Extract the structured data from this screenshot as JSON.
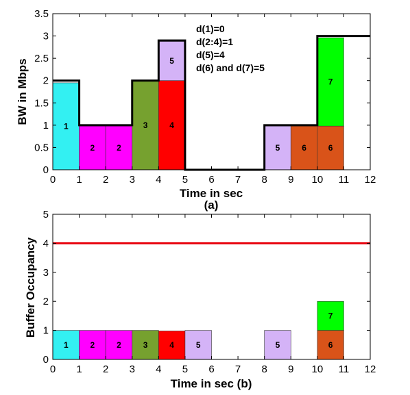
{
  "chart_data": [
    {
      "type": "bar",
      "subplot_label": "(a)",
      "xlabel": "Time in sec",
      "ylabel": "BW in Mbps",
      "xlim": [
        0,
        12
      ],
      "ylim": [
        0,
        3.5
      ],
      "xticks": [
        "0",
        "1",
        "2",
        "3",
        "4",
        "5",
        "6",
        "7",
        "8",
        "9",
        "10",
        "11",
        "12"
      ],
      "yticks": [
        "0",
        "0.5",
        "1",
        "1.5",
        "2",
        "2.5",
        "3",
        "3.5"
      ],
      "annotations": [
        "d(1)=0",
        "d(2:4)=1",
        "d(5)=4",
        "d(6) and d(7)=5"
      ],
      "bandwidth_step": [
        {
          "x0": 0,
          "x1": 1,
          "y": 2
        },
        {
          "x0": 1,
          "x1": 3,
          "y": 1
        },
        {
          "x0": 3,
          "x1": 4,
          "y": 2
        },
        {
          "x0": 4,
          "x1": 5,
          "y": 2.9
        },
        {
          "x0": 5,
          "x1": 8,
          "y": 0
        },
        {
          "x0": 8,
          "x1": 10,
          "y": 1
        },
        {
          "x0": 10,
          "x1": 12,
          "y": 3
        }
      ],
      "segments": [
        {
          "label": "1",
          "x0": 0,
          "x1": 1,
          "y0": 0,
          "y1": 1.95,
          "color": "#33f0f2"
        },
        {
          "label": "2",
          "x0": 1,
          "x1": 2,
          "y0": 0,
          "y1": 0.98,
          "color": "#ff00ff"
        },
        {
          "label": "2",
          "x0": 2,
          "x1": 3,
          "y0": 0,
          "y1": 0.98,
          "color": "#ff00ff"
        },
        {
          "label": "3",
          "x0": 3,
          "x1": 4,
          "y0": 0,
          "y1": 2.0,
          "color": "#76a12f"
        },
        {
          "label": "4",
          "x0": 4,
          "x1": 5,
          "y0": 0,
          "y1": 2.0,
          "color": "#ff0000"
        },
        {
          "label": "5",
          "x0": 4,
          "x1": 5,
          "y0": 2.0,
          "y1": 2.88,
          "color": "#d4b3f7"
        },
        {
          "label": "5",
          "x0": 8,
          "x1": 9,
          "y0": 0,
          "y1": 0.98,
          "color": "#d4b3f7"
        },
        {
          "label": "6",
          "x0": 9,
          "x1": 10,
          "y0": 0,
          "y1": 0.98,
          "color": "#d95319"
        },
        {
          "label": "6",
          "x0": 10,
          "x1": 11,
          "y0": 0,
          "y1": 0.98,
          "color": "#d95319"
        },
        {
          "label": "7",
          "x0": 10,
          "x1": 11,
          "y0": 0.98,
          "y1": 2.96,
          "color": "#00ff00"
        }
      ]
    },
    {
      "type": "bar",
      "xlabel": "Time in sec (b)",
      "ylabel": "Buffer Occupancy",
      "xlim": [
        0,
        12
      ],
      "ylim": [
        0,
        5
      ],
      "xticks": [
        "0",
        "1",
        "2",
        "3",
        "4",
        "5",
        "6",
        "7",
        "8",
        "9",
        "10",
        "11",
        "12"
      ],
      "yticks": [
        "0",
        "1",
        "2",
        "3",
        "4",
        "5"
      ],
      "threshold": {
        "y": 4,
        "color": "#e8000b"
      },
      "segments": [
        {
          "label": "1",
          "x0": 0,
          "x1": 1,
          "y0": 0,
          "y1": 1.0,
          "color": "#33f0f2"
        },
        {
          "label": "2",
          "x0": 1,
          "x1": 2,
          "y0": 0,
          "y1": 1.0,
          "color": "#ff00ff"
        },
        {
          "label": "2",
          "x0": 2,
          "x1": 3,
          "y0": 0,
          "y1": 1.0,
          "color": "#ff00ff"
        },
        {
          "label": "3",
          "x0": 3,
          "x1": 4,
          "y0": 0,
          "y1": 1.0,
          "color": "#76a12f"
        },
        {
          "label": "4",
          "x0": 4,
          "x1": 5,
          "y0": 0,
          "y1": 0.98,
          "color": "#ff0000"
        },
        {
          "label": "5",
          "x0": 5,
          "x1": 6,
          "y0": 0,
          "y1": 1.0,
          "color": "#d4b3f7"
        },
        {
          "label": "5",
          "x0": 8,
          "x1": 9,
          "y0": 0,
          "y1": 1.0,
          "color": "#d4b3f7"
        },
        {
          "label": "6",
          "x0": 10,
          "x1": 11,
          "y0": 0,
          "y1": 1.0,
          "color": "#d95319"
        },
        {
          "label": "7",
          "x0": 10,
          "x1": 11,
          "y0": 1.0,
          "y1": 2.0,
          "color": "#00ff00"
        }
      ]
    }
  ]
}
